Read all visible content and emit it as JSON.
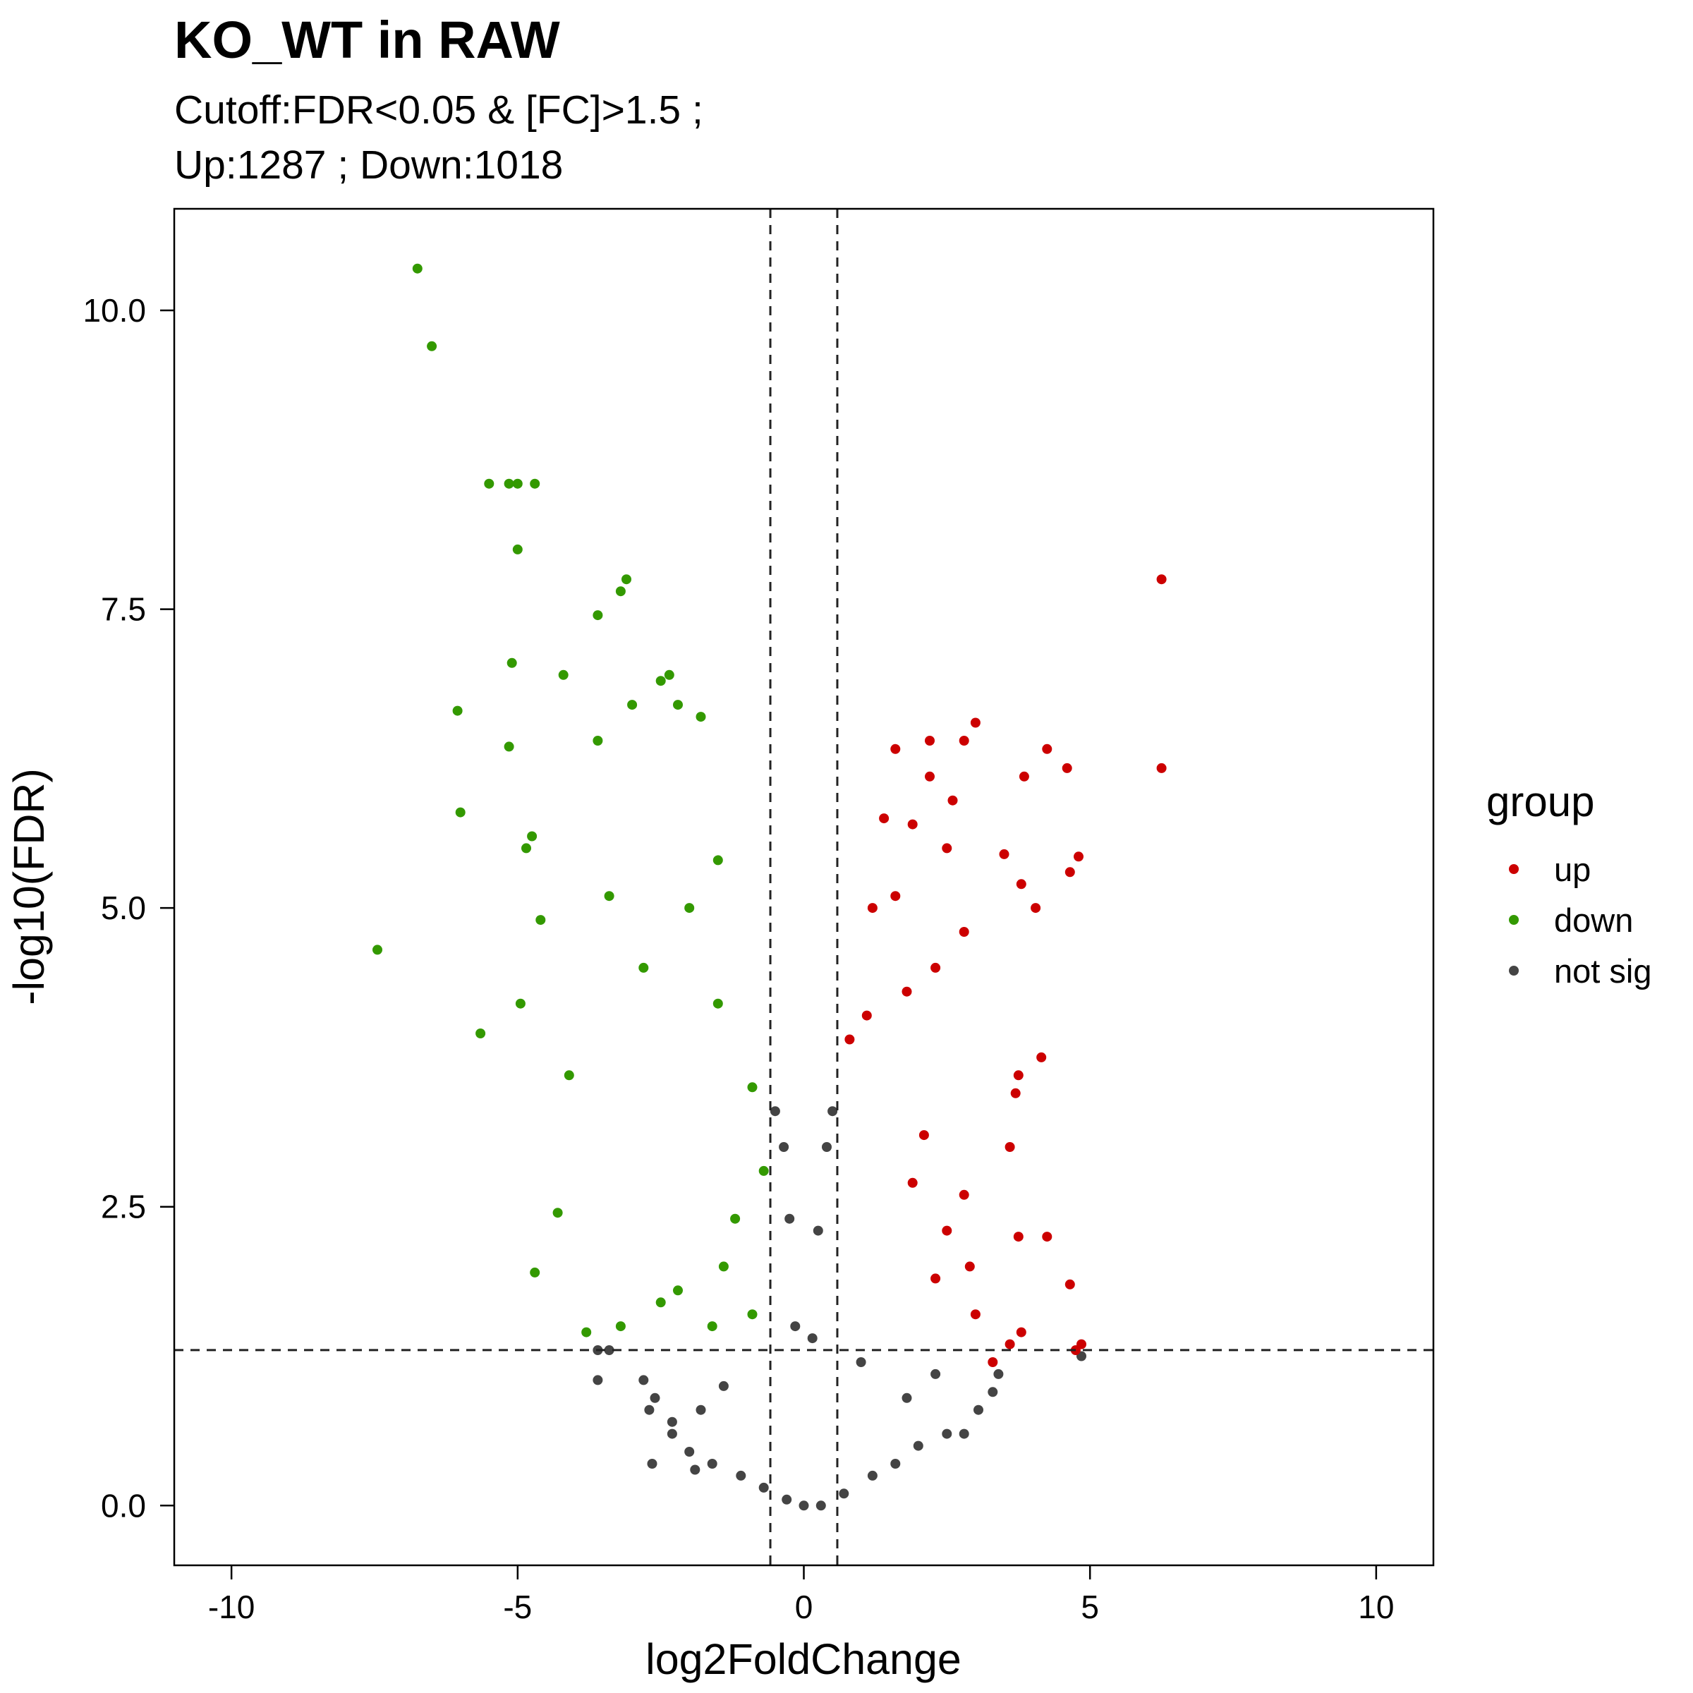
{
  "chart_data": {
    "type": "scatter",
    "title": "KO_WT in RAW",
    "subtitle_lines": [
      "Cutoff:FDR<0.05 & [FC]>1.5 ;",
      "Up:1287 ; Down:1018"
    ],
    "xlabel": "log2FoldChange",
    "ylabel": "-log10(FDR)",
    "xlim": [
      -11,
      11
    ],
    "ylim": [
      -0.5,
      10.85
    ],
    "xticks": [
      -10,
      -5,
      0,
      5,
      10
    ],
    "xtick_labels": [
      "-10",
      "-5",
      "0",
      "5",
      "10"
    ],
    "yticks": [
      0,
      2.5,
      5,
      7.5,
      10
    ],
    "ytick_labels": [
      "0.0",
      "2.5",
      "5.0",
      "7.5",
      "10.0"
    ],
    "grid": false,
    "legend": {
      "title": "group",
      "placement": "right",
      "entries": [
        {
          "label": "up",
          "color": "#cc0000"
        },
        {
          "label": "down",
          "color": "#339900"
        },
        {
          "label": "not sig",
          "color": "#444444"
        }
      ]
    },
    "cutoff_lines": {
      "vertical": [
        -0.585,
        0.585
      ],
      "horizontal": [
        1.301
      ]
    },
    "series": [
      {
        "name": "up",
        "color": "#cc0000",
        "points": [
          [
            6.25,
            7.75
          ],
          [
            6.25,
            6.17
          ],
          [
            4.8,
            5.43
          ],
          [
            4.65,
            5.3
          ],
          [
            4.6,
            6.17
          ],
          [
            4.25,
            6.33
          ],
          [
            4.05,
            5.0
          ],
          [
            4.15,
            3.75
          ],
          [
            3.85,
            6.1
          ],
          [
            3.8,
            5.2
          ],
          [
            3.75,
            3.6
          ],
          [
            3.7,
            3.45
          ],
          [
            3.6,
            3.0
          ],
          [
            3.5,
            5.45
          ],
          [
            3.0,
            6.55
          ],
          [
            2.8,
            6.4
          ],
          [
            2.6,
            5.9
          ],
          [
            2.2,
            6.4
          ],
          [
            2.2,
            6.1
          ],
          [
            1.6,
            6.33
          ],
          [
            1.9,
            5.7
          ],
          [
            1.4,
            5.75
          ],
          [
            2.5,
            5.5
          ],
          [
            1.6,
            5.1
          ],
          [
            1.2,
            5.0
          ],
          [
            2.8,
            4.8
          ],
          [
            2.3,
            4.5
          ],
          [
            1.8,
            4.3
          ],
          [
            1.1,
            4.1
          ],
          [
            0.8,
            3.9
          ],
          [
            4.25,
            2.25
          ],
          [
            4.65,
            1.85
          ],
          [
            4.75,
            1.3
          ],
          [
            4.85,
            1.35
          ],
          [
            3.75,
            2.25
          ],
          [
            3.8,
            1.45
          ],
          [
            3.6,
            1.35
          ],
          [
            3.3,
            1.2
          ],
          [
            3.0,
            1.6
          ],
          [
            2.9,
            2.0
          ],
          [
            2.8,
            2.6
          ],
          [
            2.5,
            2.3
          ],
          [
            2.3,
            1.9
          ],
          [
            2.1,
            3.1
          ],
          [
            1.9,
            2.7
          ]
        ]
      },
      {
        "name": "down",
        "color": "#339900",
        "points": [
          [
            -6.75,
            10.35
          ],
          [
            -6.5,
            9.7
          ],
          [
            -5.5,
            8.55
          ],
          [
            -5.15,
            8.55
          ],
          [
            -5.0,
            8.55
          ],
          [
            -4.7,
            8.55
          ],
          [
            -5.0,
            8.0
          ],
          [
            -3.1,
            7.75
          ],
          [
            -3.2,
            7.65
          ],
          [
            -3.6,
            7.45
          ],
          [
            -5.1,
            7.05
          ],
          [
            -4.2,
            6.95
          ],
          [
            -2.35,
            6.95
          ],
          [
            -6.05,
            6.65
          ],
          [
            -5.15,
            6.35
          ],
          [
            -3.6,
            6.4
          ],
          [
            -6.0,
            5.8
          ],
          [
            -4.75,
            5.6
          ],
          [
            -4.85,
            5.5
          ],
          [
            -4.6,
            4.9
          ],
          [
            -7.45,
            4.65
          ],
          [
            -4.95,
            4.2
          ],
          [
            -5.65,
            3.95
          ],
          [
            -4.1,
            3.6
          ],
          [
            -4.3,
            2.45
          ],
          [
            -4.7,
            1.95
          ],
          [
            -3.8,
            1.45
          ],
          [
            -2.5,
            6.9
          ],
          [
            -1.8,
            6.6
          ],
          [
            -2.2,
            6.7
          ],
          [
            -3.0,
            6.7
          ],
          [
            -1.5,
            5.4
          ],
          [
            -2.0,
            5.0
          ],
          [
            -3.4,
            5.1
          ],
          [
            -2.8,
            4.5
          ],
          [
            -1.5,
            4.2
          ],
          [
            -0.9,
            3.5
          ],
          [
            -0.7,
            2.8
          ],
          [
            -1.2,
            2.4
          ],
          [
            -1.4,
            2.0
          ],
          [
            -0.9,
            1.6
          ],
          [
            -1.6,
            1.5
          ],
          [
            -3.2,
            1.5
          ],
          [
            -2.5,
            1.7
          ],
          [
            -2.2,
            1.8
          ]
        ]
      },
      {
        "name": "not sig",
        "color": "#444444",
        "points": [
          [
            4.85,
            1.25
          ],
          [
            3.4,
            1.1
          ],
          [
            3.3,
            0.95
          ],
          [
            3.05,
            0.8
          ],
          [
            2.8,
            0.6
          ],
          [
            2.5,
            0.6
          ],
          [
            2.0,
            0.5
          ],
          [
            1.6,
            0.35
          ],
          [
            1.2,
            0.25
          ],
          [
            0.7,
            0.1
          ],
          [
            0.3,
            0.0
          ],
          [
            0.0,
            0.0
          ],
          [
            -0.3,
            0.05
          ],
          [
            -0.7,
            0.15
          ],
          [
            -1.1,
            0.25
          ],
          [
            -1.6,
            0.35
          ],
          [
            -2.0,
            0.45
          ],
          [
            -2.3,
            0.7
          ],
          [
            -2.6,
            0.9
          ],
          [
            -2.8,
            1.05
          ],
          [
            -3.4,
            1.3
          ],
          [
            -3.6,
            1.05
          ],
          [
            -3.6,
            1.3
          ],
          [
            -2.7,
            0.8
          ],
          [
            -2.65,
            0.35
          ],
          [
            -2.3,
            0.6
          ],
          [
            -1.9,
            0.3
          ],
          [
            0.25,
            2.3
          ],
          [
            -0.25,
            2.4
          ],
          [
            0.4,
            3.0
          ],
          [
            -0.35,
            3.0
          ],
          [
            0.5,
            3.3
          ],
          [
            -0.5,
            3.3
          ],
          [
            0.15,
            1.4
          ],
          [
            -0.15,
            1.5
          ],
          [
            2.3,
            1.1
          ],
          [
            1.8,
            0.9
          ],
          [
            -1.4,
            1.0
          ],
          [
            -1.8,
            0.8
          ],
          [
            1.0,
            1.2
          ]
        ]
      }
    ]
  }
}
